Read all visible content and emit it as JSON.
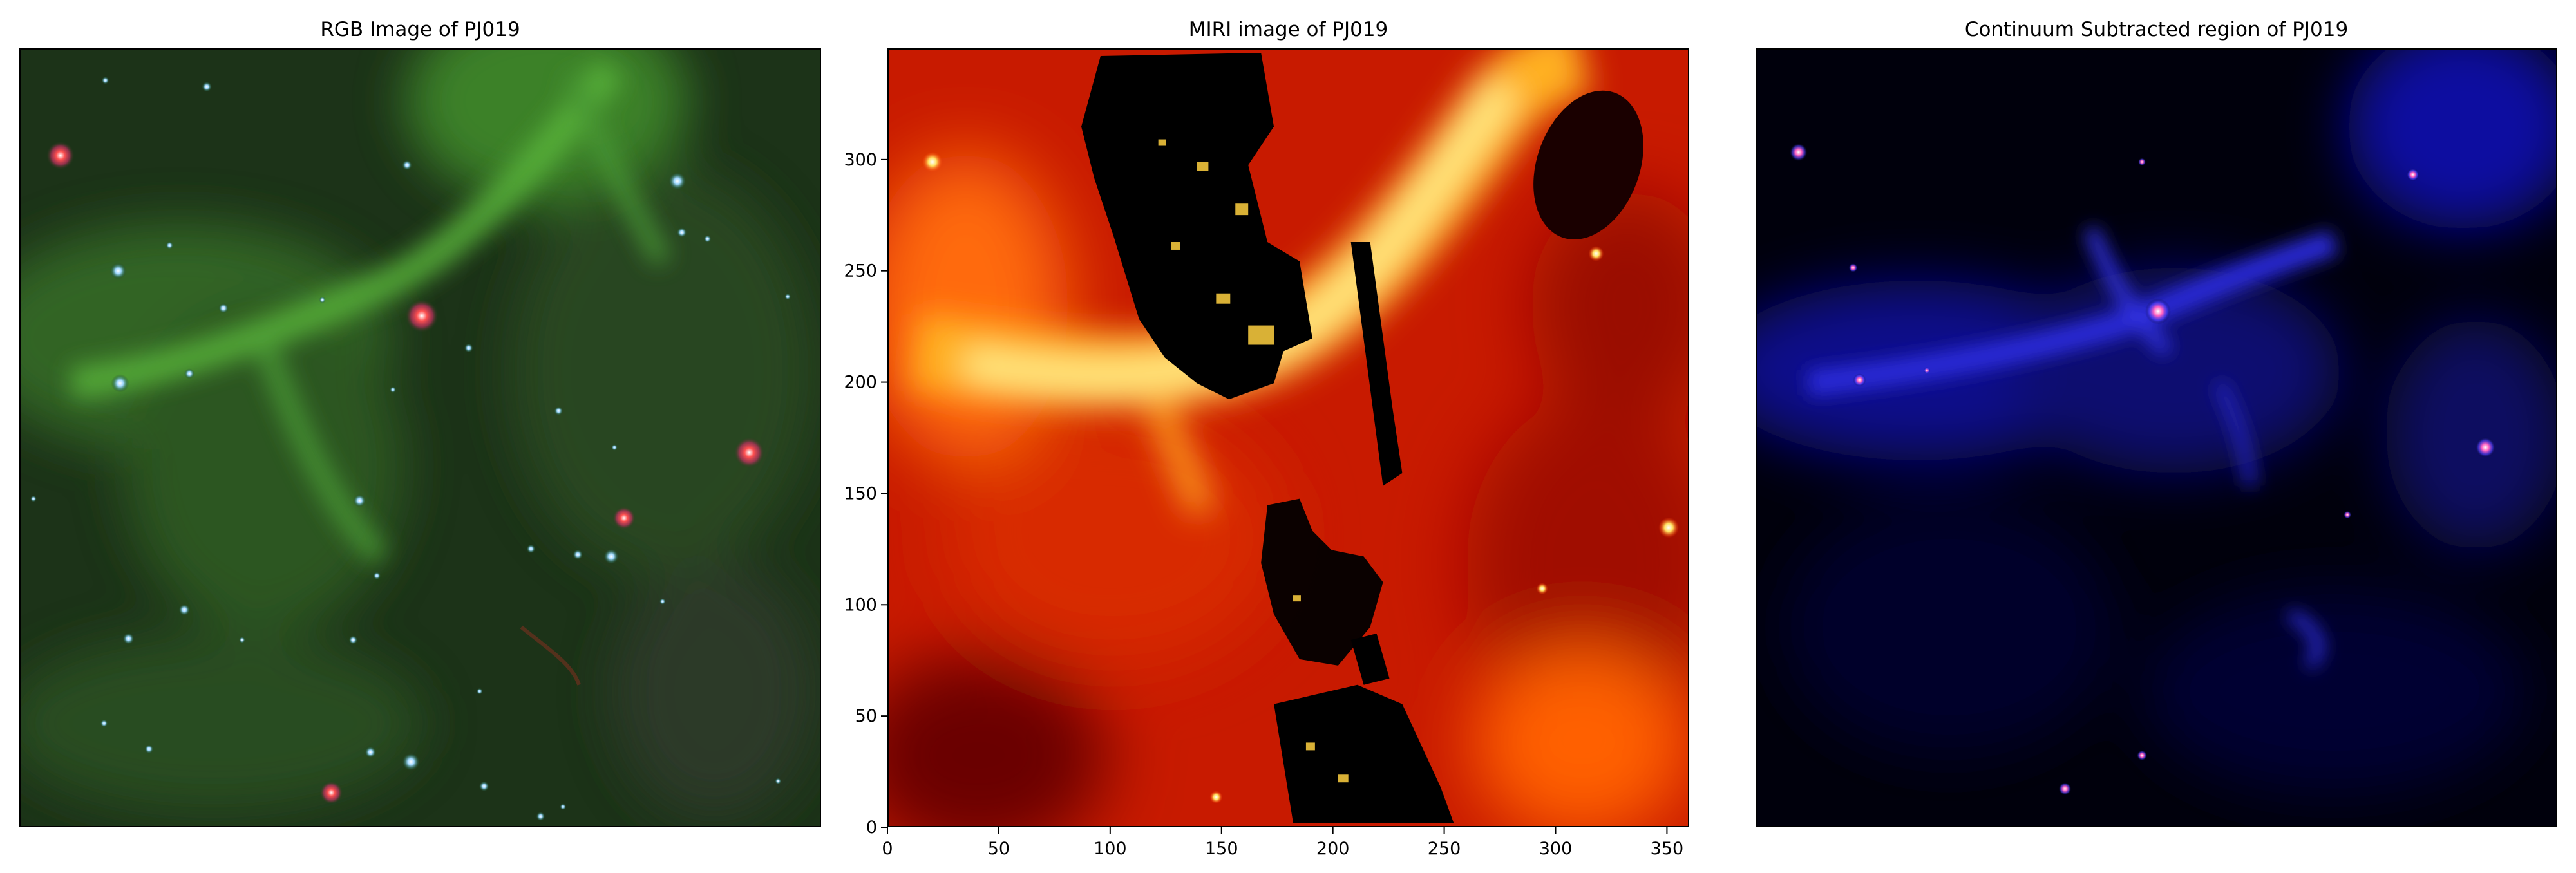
{
  "panels": [
    {
      "title": "RGB Image of PJ019"
    },
    {
      "title": "MIRI image of PJ019"
    },
    {
      "title": "Continuum Subtracted region of PJ019"
    }
  ],
  "miri_axes": {
    "x_range": [
      0,
      360
    ],
    "y_range": [
      0,
      350
    ],
    "x_ticks": [
      "0",
      "50",
      "100",
      "150",
      "200",
      "250",
      "300",
      "350"
    ],
    "y_ticks": [
      "0",
      "50",
      "100",
      "150",
      "200",
      "250",
      "300"
    ]
  },
  "colors": {
    "rgb_background": "#1f3a1a",
    "rgb_filament": "#3f8a2c",
    "miri_low": "#8a0a00",
    "miri_mid": "#ff3a00",
    "miri_high": "#ffe060",
    "miri_mask": "#000000",
    "continuum_background": "#00000f",
    "continuum_emission": "#1a1aa0"
  }
}
